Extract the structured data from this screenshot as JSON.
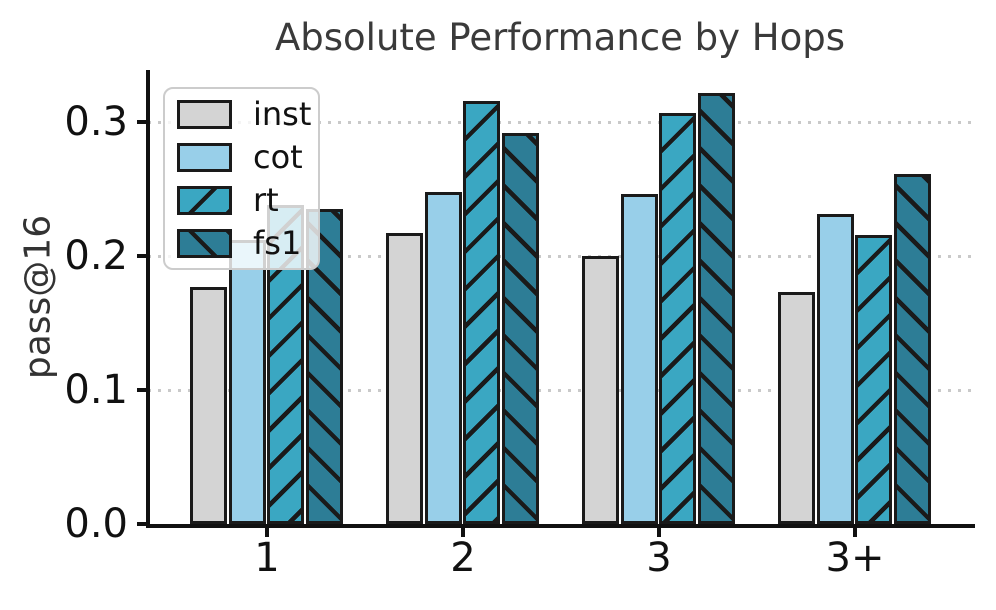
{
  "chart_data": {
    "type": "bar",
    "title": "Absolute Performance by Hops",
    "xlabel": "",
    "ylabel": "pass@16",
    "categories": [
      "1",
      "2",
      "3",
      "3+"
    ],
    "series": [
      {
        "name": "inst",
        "color": "#d4d4d4",
        "hatch": "none",
        "values": [
          0.177,
          0.217,
          0.2,
          0.173
        ]
      },
      {
        "name": "cot",
        "color": "#98cfe9",
        "hatch": "none",
        "values": [
          0.212,
          0.248,
          0.246,
          0.231
        ]
      },
      {
        "name": "rt",
        "color": "#3aa7c2",
        "hatch": "/",
        "values": [
          0.238,
          0.316,
          0.307,
          0.216
        ]
      },
      {
        "name": "fs1",
        "color": "#2d7d96",
        "hatch": "\\",
        "values": [
          0.235,
          0.292,
          0.322,
          0.261
        ]
      }
    ],
    "ylim": [
      0.0,
      0.339
    ],
    "yticks": [
      0.0,
      0.1,
      0.2,
      0.3
    ],
    "ytick_labels": [
      "0.0",
      "0.1",
      "0.2",
      "0.3"
    ],
    "grid": "horizontal dotted at yticks",
    "legend_position": "upper left",
    "legend_labels": [
      "inst",
      "cot",
      "rt",
      "fs1"
    ],
    "bar_edge_color": "#1a1a1a",
    "grid_color": "#c9c9c9",
    "axis_color": "#111111",
    "background_color": "#ffffff"
  }
}
